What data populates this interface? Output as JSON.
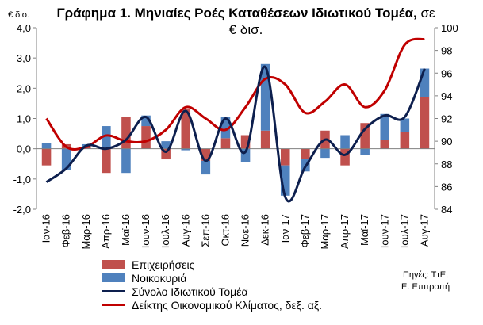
{
  "title_main": "Γράφημα 1. Μηνιαίες Ροές Καταθέσεων Ιδιωτικού Τομέα,",
  "title_sub": " σε € δισ.",
  "left_unit": "€ δισ.",
  "source_line1": "Πηγές: ΤτΕ,",
  "source_line2": "Ε. Επιτροπή",
  "chart_data": {
    "type": "bar",
    "categories": [
      "Ιαν-16",
      "Φεβ-16",
      "Μαρ-16",
      "Απρ-16",
      "Μαϊ-16",
      "Ιουν-16",
      "Ιουλ-16",
      "Αυγ-16",
      "Σεπ-16",
      "Οκτ-16",
      "Νοε-16",
      "Δεκ-16",
      "Ιαν-17",
      "Φεβ-17",
      "Μαρ-17",
      "Απρ-17",
      "Μαϊ-17",
      "Ιουν-17",
      "Ιουλ-17",
      "Αυγ-17"
    ],
    "ylim_left": [
      -2.0,
      4.0
    ],
    "yticks_left": [
      "-2,0",
      "-1,0",
      "0,0",
      "1,0",
      "2,0",
      "3,0",
      "4,0"
    ],
    "ylim_right": [
      84,
      100
    ],
    "yticks_right": [
      "84",
      "86",
      "88",
      "90",
      "92",
      "94",
      "96",
      "98",
      "100"
    ],
    "colors": {
      "business": "#c0504d",
      "households": "#4f81bd",
      "total": "#0d1f4e",
      "climate": "#c00000"
    },
    "series": [
      {
        "name": "Επιχειρήσεις",
        "kind": "bar",
        "axis": "left",
        "values": [
          -0.55,
          0.15,
          0.05,
          -0.8,
          1.05,
          0.75,
          -0.35,
          1.3,
          -0.4,
          0.35,
          0.45,
          0.6,
          -0.55,
          -0.35,
          0.6,
          -0.55,
          0.85,
          0.3,
          0.55,
          1.7
        ]
      },
      {
        "name": "Νοικοκυριά",
        "kind": "bar",
        "axis": "left",
        "values": [
          0.2,
          -0.7,
          0.1,
          0.75,
          -0.8,
          0.35,
          0.25,
          -0.05,
          -0.45,
          0.7,
          -0.45,
          2.2,
          -1.0,
          -0.4,
          -0.3,
          0.45,
          -0.2,
          0.85,
          0.45,
          0.95
        ]
      },
      {
        "name": "Σύνολο Ιδιωτικού Τομέα",
        "kind": "line",
        "axis": "left",
        "values": [
          -1.1,
          -0.65,
          0.1,
          0.0,
          0.3,
          1.05,
          -0.1,
          1.25,
          -0.4,
          1.0,
          -0.1,
          2.7,
          -1.6,
          -0.6,
          0.3,
          -0.2,
          0.65,
          1.1,
          1.05,
          2.65
        ]
      },
      {
        "name": "Δείκτης Οικονομικού Κλίματος, δεξ. αξ.",
        "kind": "line",
        "axis": "right",
        "values": [
          92.0,
          89.5,
          89.5,
          90.5,
          90.0,
          90.0,
          91.0,
          93.0,
          92.0,
          91.0,
          93.0,
          95.5,
          95.0,
          92.5,
          93.5,
          95.0,
          93.0,
          94.5,
          98.5,
          99.0
        ]
      }
    ]
  }
}
